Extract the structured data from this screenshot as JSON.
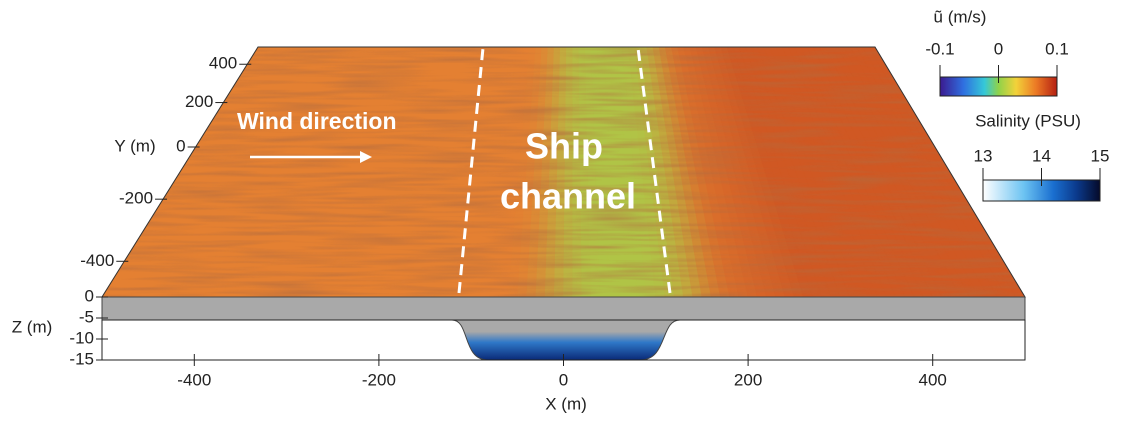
{
  "chart_data": {
    "type": "surface3d",
    "xlabel": "X (m)",
    "ylabel": "Y (m)",
    "zlabel": "Z (m)",
    "xlim": [
      -500,
      500
    ],
    "xticks": [
      -400,
      -200,
      0,
      200,
      400
    ],
    "ylim": [
      -500,
      500
    ],
    "yticks": [
      -400,
      -200,
      0,
      200,
      400
    ],
    "zlim": [
      -15,
      0
    ],
    "zticks": [
      0,
      -5,
      -10,
      -15
    ],
    "annotations": [
      "Wind direction",
      "Ship",
      "channel"
    ],
    "colorbars": [
      {
        "title": "ũ (m/s)",
        "lim": [
          -0.1,
          0.1
        ],
        "ticks": [
          -0.1,
          0,
          0.1
        ]
      },
      {
        "title": "Salinity (PSU)",
        "lim": [
          13,
          15
        ],
        "ticks": [
          13,
          14,
          15
        ]
      }
    ]
  }
}
